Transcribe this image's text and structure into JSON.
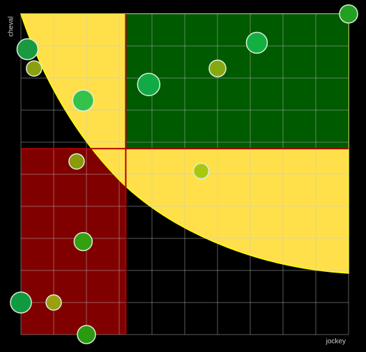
{
  "chart_data": {
    "type": "scatter",
    "x_label": "jockey",
    "y_label": "cheval",
    "xlim": [
      0,
      10
    ],
    "ylim": [
      0,
      10
    ],
    "xticks": [
      0,
      1,
      2,
      3,
      4,
      5,
      6,
      7,
      8,
      9,
      10
    ],
    "yticks": [
      0,
      1,
      2,
      3,
      4,
      5,
      6,
      7,
      8,
      9,
      10
    ],
    "grid": true,
    "x_threshold": 3.2,
    "y_threshold": 5.8,
    "x": [
      10,
      0.2,
      0.4,
      1.9,
      3.9,
      6.0,
      7.2,
      1.7,
      5.5,
      1.9,
      0,
      1.0,
      2.0
    ],
    "values": [
      10,
      8.9,
      8.3,
      7.3,
      7.8,
      8.3,
      9.1,
      5.4,
      5.1,
      2.9,
      1.0,
      1.0,
      0
    ],
    "sizes": [
      13,
      15,
      11,
      15,
      16,
      12,
      15,
      11,
      11,
      13,
      15,
      11,
      13
    ],
    "colors": [
      "#22a022",
      "#1a9a40",
      "#8aa010",
      "#33c24a",
      "#11aa44",
      "#88a812",
      "#11b040",
      "#8a9a08",
      "#a8c810",
      "#33a010",
      "#109a40",
      "#9aa010",
      "#2a9a10"
    ]
  }
}
